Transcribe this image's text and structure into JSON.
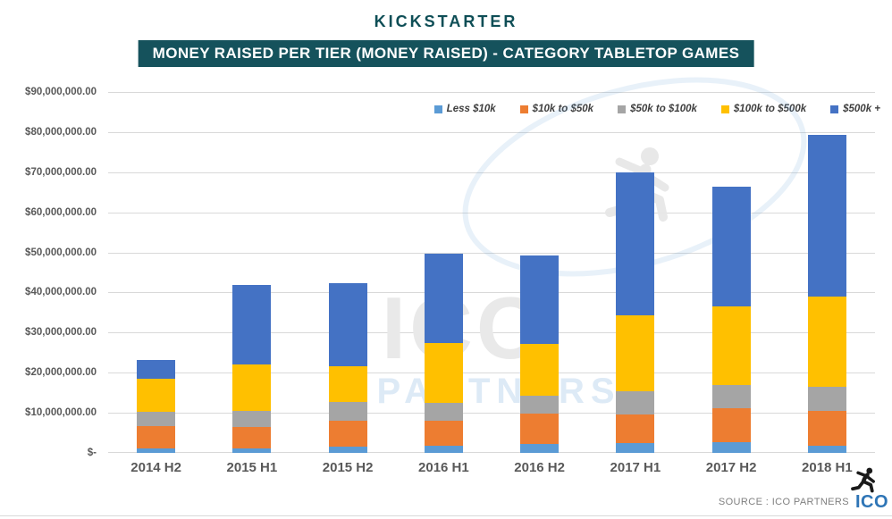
{
  "header": {
    "logo_text": "KICKSTARTER",
    "title": "MONEY RAISED PER TIER (MONEY RAISED) - CATEGORY TABLETOP GAMES"
  },
  "chart_data": {
    "type": "bar",
    "stacked": true,
    "title": "MONEY RAISED PER TIER (MONEY RAISED) - CATEGORY TABLETOP GAMES",
    "categories": [
      "2014 H2",
      "2015 H1",
      "2015 H2",
      "2016 H1",
      "2016 H2",
      "2017 H1",
      "2017 H2",
      "2018 H1"
    ],
    "series": [
      {
        "name": "Less $10k",
        "color": "#5B9BD5",
        "values": [
          1200000,
          1200000,
          1600000,
          1900000,
          2200000,
          2400000,
          2700000,
          1900000
        ]
      },
      {
        "name": "$10k to $50k",
        "color": "#ED7D31",
        "values": [
          5500000,
          5300000,
          6400000,
          6100000,
          7500000,
          7200000,
          8500000,
          8600000
        ]
      },
      {
        "name": "$50k to $100k",
        "color": "#A5A5A5",
        "values": [
          3500000,
          4000000,
          4700000,
          4600000,
          4600000,
          5700000,
          5700000,
          6100000
        ]
      },
      {
        "name": "$100k to $500k",
        "color": "#FFC000",
        "values": [
          8200000,
          11600000,
          8900000,
          14900000,
          12900000,
          19100000,
          19600000,
          22300000
        ]
      },
      {
        "name": "$500k +",
        "color": "#4472C4",
        "values": [
          4800000,
          19700000,
          20800000,
          22200000,
          22100000,
          35500000,
          29900000,
          40500000
        ]
      }
    ],
    "ylim": [
      0,
      90000000
    ],
    "ytick_step": 10000000,
    "ytick_labels": [
      "$-",
      "$10,000,000.00",
      "$20,000,000.00",
      "$30,000,000.00",
      "$40,000,000.00",
      "$50,000,000.00",
      "$60,000,000.00",
      "$70,000,000.00",
      "$80,000,000.00",
      "$90,000,000.00"
    ],
    "grid": true,
    "legend_position": "top-right"
  },
  "watermark": {
    "line1": "ICO",
    "line2": "PARTNERS"
  },
  "footer": {
    "source_text": "SOURCE : ICO PARTNERS",
    "logo_text": "ICO"
  },
  "colors": {
    "banner_bg": "#15525c",
    "axis_text": "#595959",
    "gridline": "#d9d9d9",
    "footer_logo_blue": "#2e75b6"
  }
}
